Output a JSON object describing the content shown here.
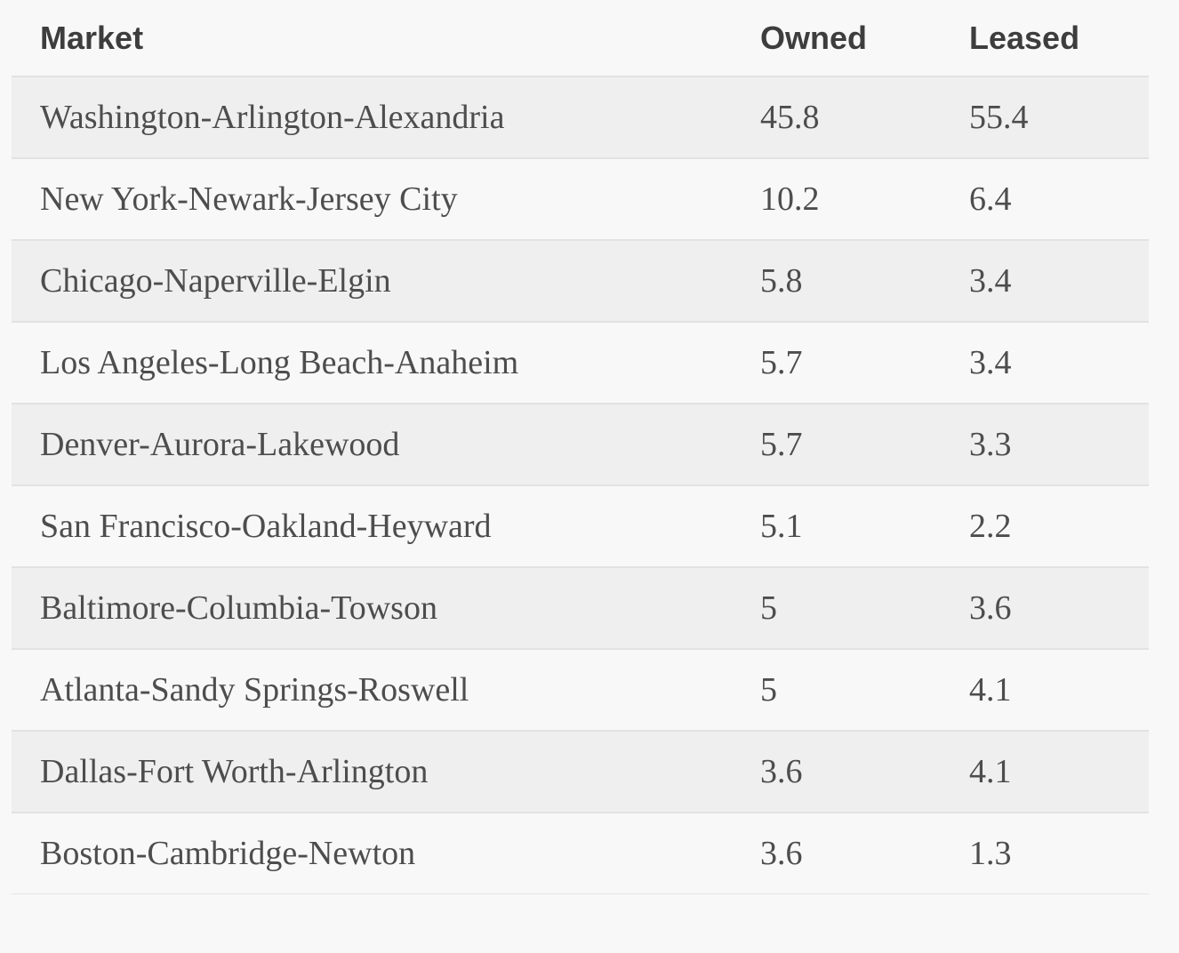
{
  "chart_data": {
    "type": "table",
    "columns": [
      "Market",
      "Owned",
      "Leased"
    ],
    "rows": [
      [
        "Washington-Arlington-Alexandria",
        45.8,
        55.4
      ],
      [
        "New York-Newark-Jersey City",
        10.2,
        6.4
      ],
      [
        "Chicago-Naperville-Elgin",
        5.8,
        3.4
      ],
      [
        "Los Angeles-Long Beach-Anaheim",
        5.7,
        3.4
      ],
      [
        "Denver-Aurora-Lakewood",
        5.7,
        3.3
      ],
      [
        "San Francisco-Oakland-Heyward",
        5.1,
        2.2
      ],
      [
        "Baltimore-Columbia-Towson",
        5,
        3.6
      ],
      [
        "Atlanta-Sandy Springs-Roswell",
        5,
        4.1
      ],
      [
        "Dallas-Fort Worth-Arlington",
        3.6,
        4.1
      ],
      [
        "Boston-Cambridge-Newton",
        3.6,
        1.3
      ]
    ]
  },
  "colors": {
    "page_background": "#f8f8f8",
    "stripe_background": "#efefef",
    "row_border": "#e2e2e2",
    "table_bottom_border": "#e5e5e5",
    "header_text": "#3d3d3d",
    "body_text": "#4d4d4d"
  }
}
